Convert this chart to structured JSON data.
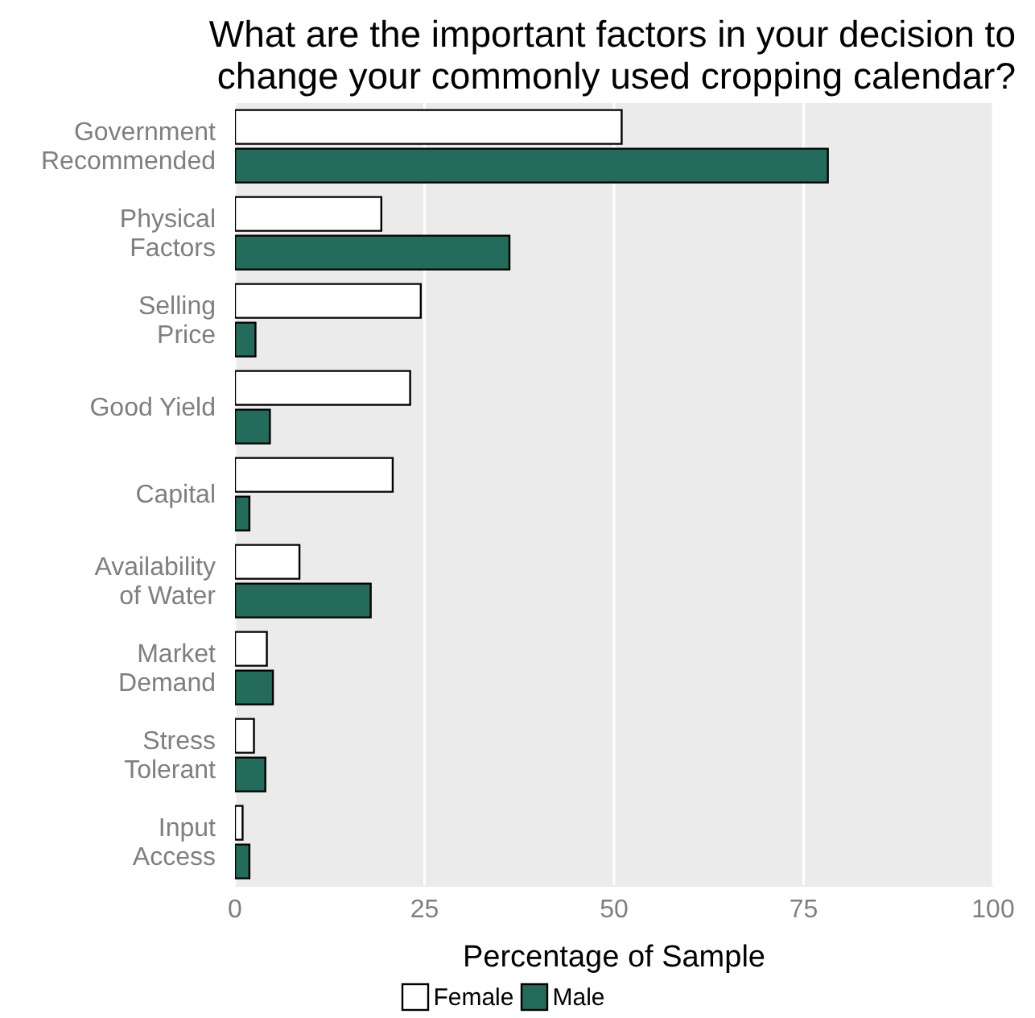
{
  "chart_data": {
    "type": "bar",
    "orientation": "horizontal",
    "title": "What are the important factors in your decision to\nchange your commonly used cropping calendar?",
    "xlabel": "Percentage of Sample",
    "categories": [
      "Government\nRecommended",
      "Physical\nFactors",
      "Selling\nPrice",
      "Good Yield",
      "Capital",
      "Availability\nof Water",
      "Market\nDemand",
      "Stress\nTolerant",
      "Input\nAccess"
    ],
    "series": [
      {
        "name": "Female",
        "color": "#ffffff",
        "values": [
          51,
          19.3,
          24.5,
          23.1,
          20.8,
          8.5,
          4.2,
          2.5,
          1.0
        ]
      },
      {
        "name": "Male",
        "color": "#236b5a",
        "values": [
          78.2,
          36.2,
          2.7,
          4.6,
          1.9,
          17.9,
          5.0,
          4.0,
          1.9
        ]
      }
    ],
    "xlim": [
      0,
      100
    ],
    "xticks": [
      0,
      25,
      50,
      75,
      100
    ],
    "grid": "x",
    "legend": "bottom"
  }
}
